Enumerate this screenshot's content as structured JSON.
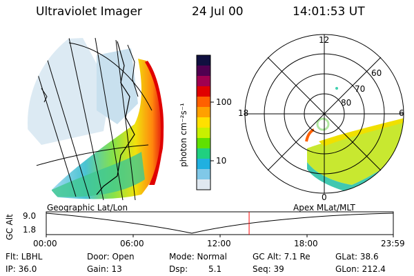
{
  "header": {
    "title": "Ultraviolet Imager",
    "date": "24 Jul 00",
    "time": "14:01:53 UT"
  },
  "panels": {
    "geo_caption": "Geographic Lat/Lon",
    "polar_caption": "Apex MLat/MLT"
  },
  "colorbar": {
    "label": "photon cm⁻²s⁻¹",
    "ticks": [
      "100",
      "10"
    ],
    "colors": [
      "#101040",
      "#500050",
      "#a00050",
      "#e00000",
      "#ff6000",
      "#ffa000",
      "#ffe000",
      "#c8f000",
      "#60e000",
      "#20d080",
      "#20b0e0",
      "#80c8e8",
      "#e0e8f0"
    ]
  },
  "polar": {
    "mlt_labels": [
      "12",
      "18",
      "6",
      "0"
    ],
    "mlat_labels": [
      "60",
      "70",
      "80"
    ]
  },
  "altitude_plot": {
    "ylabel": "GC Alt",
    "ymax": "9.0",
    "ymin": "1.8",
    "xticks": [
      "00:00",
      "06:00",
      "12:00",
      "18:00",
      "23:59"
    ],
    "current_time_fraction": 0.5846,
    "marker_color": "#ff0000"
  },
  "info": {
    "flt": "Flt: LBHL",
    "ip": "IP: 36.0",
    "door": "Door: Open",
    "gain": "Gain: 13",
    "mode": "Mode: Normal",
    "dsp_label": "Dsp:",
    "dsp_value": "5.1",
    "gcalt": "GC Alt: 7.1 Re",
    "seq": "Seq: 39",
    "glat": "GLat: 38.6",
    "glon": "GLon: 212.4"
  }
}
